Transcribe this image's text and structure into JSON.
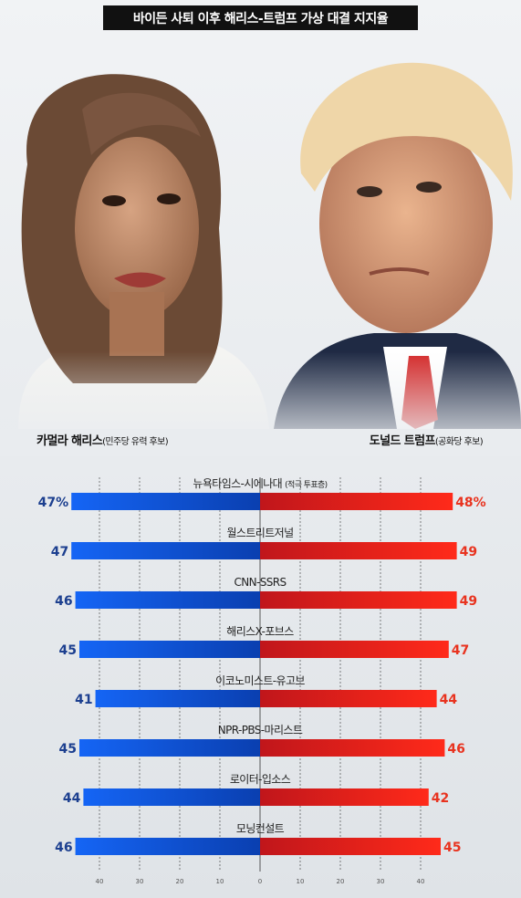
{
  "title": "바이든 사퇴 이후 해리스-트럼프 가상 대결 지지율",
  "candidates": {
    "left": {
      "name": "카멀라 해리스",
      "note": "(민주당 유력 후보)",
      "color": "#1f6cf0"
    },
    "right": {
      "name": "도널드 트럼프",
      "note": "(공화당 후보)",
      "color": "#e8271c"
    }
  },
  "chart_data": {
    "type": "bar",
    "orientation": "horizontal-diverging",
    "categories": [
      {
        "name": "뉴욕타임스-시에나대",
        "sub": "(적극 투표층)"
      },
      {
        "name": "월스트리트저널",
        "sub": ""
      },
      {
        "name": "CNN-SSRS",
        "sub": ""
      },
      {
        "name": "해리스X-포브스",
        "sub": ""
      },
      {
        "name": "이코노미스트-유고브",
        "sub": ""
      },
      {
        "name": "NPR-PBS-마리스트",
        "sub": ""
      },
      {
        "name": "로이터-입소스",
        "sub": ""
      },
      {
        "name": "모닝컨설트",
        "sub": ""
      }
    ],
    "series": [
      {
        "name": "카멀라 해리스",
        "values": [
          47,
          47,
          46,
          45,
          41,
          45,
          44,
          46
        ],
        "labels": [
          "47%",
          "47",
          "46",
          "45",
          "41",
          "45",
          "44",
          "46"
        ]
      },
      {
        "name": "도널드 트럼프",
        "values": [
          48,
          49,
          49,
          47,
          44,
          46,
          42,
          45
        ],
        "labels": [
          "48%",
          "49",
          "49",
          "47",
          "44",
          "46",
          "42",
          "45"
        ]
      }
    ],
    "xlim": [
      -45,
      50
    ],
    "ticks": [
      40,
      30,
      20,
      10,
      0,
      10,
      20,
      30,
      40
    ],
    "grid": true
  }
}
